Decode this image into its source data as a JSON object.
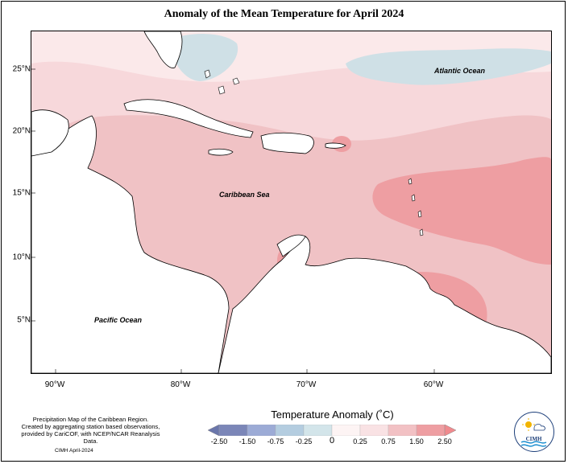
{
  "title": "Anomaly of the Mean Temperature for April 2024",
  "map": {
    "latitude_labels": [
      {
        "label": "25°N",
        "lat": 25
      },
      {
        "label": "20°N",
        "lat": 20
      },
      {
        "label": "15°N",
        "lat": 15
      },
      {
        "label": "10°N",
        "lat": 10
      },
      {
        "label": "5°N",
        "lat": 5
      }
    ],
    "longitude_labels": [
      {
        "label": "90°W",
        "lon": -90
      },
      {
        "label": "80°W",
        "lon": -80
      },
      {
        "label": "70°W",
        "lon": -70
      },
      {
        "label": "60°W",
        "lon": -60
      }
    ],
    "extent": {
      "lon_min": -92,
      "lon_max": -50,
      "lat_min": 1,
      "lat_max": 28
    },
    "labels": {
      "atlantic": "Atlantic Ocean",
      "caribbean": "Caribbean Sea",
      "pacific": "Pacific Ocean"
    }
  },
  "colorbar": {
    "title": "Temperature Anomaly (˚C)",
    "bin_labels": [
      "-2.50",
      "-1.50",
      "-0.75",
      "-0.25",
      "0",
      "0.25",
      "0.75",
      "1.50",
      "2.50"
    ],
    "colors": [
      "#7b86b8",
      "#9cabd6",
      "#b4cde0",
      "#d3e5ea",
      "#fdf4f4",
      "#f9e2e4",
      "#f2c1c4",
      "#ee9ea2"
    ],
    "over_color": "#f08a8e",
    "under_color": "#6a76ab"
  },
  "footer": {
    "note_line1": "Precipitation Map of the Caribbean Region.",
    "note_line2": "Created by aggregating station based observations,",
    "note_line3": "provided by CariCOF, with NCEP/NCAR Reanalysis Data.",
    "credit": "CIMH April-2024",
    "logo_text": "CIMH"
  },
  "colors": {
    "land": "#ffffff",
    "coastline": "#000000"
  }
}
